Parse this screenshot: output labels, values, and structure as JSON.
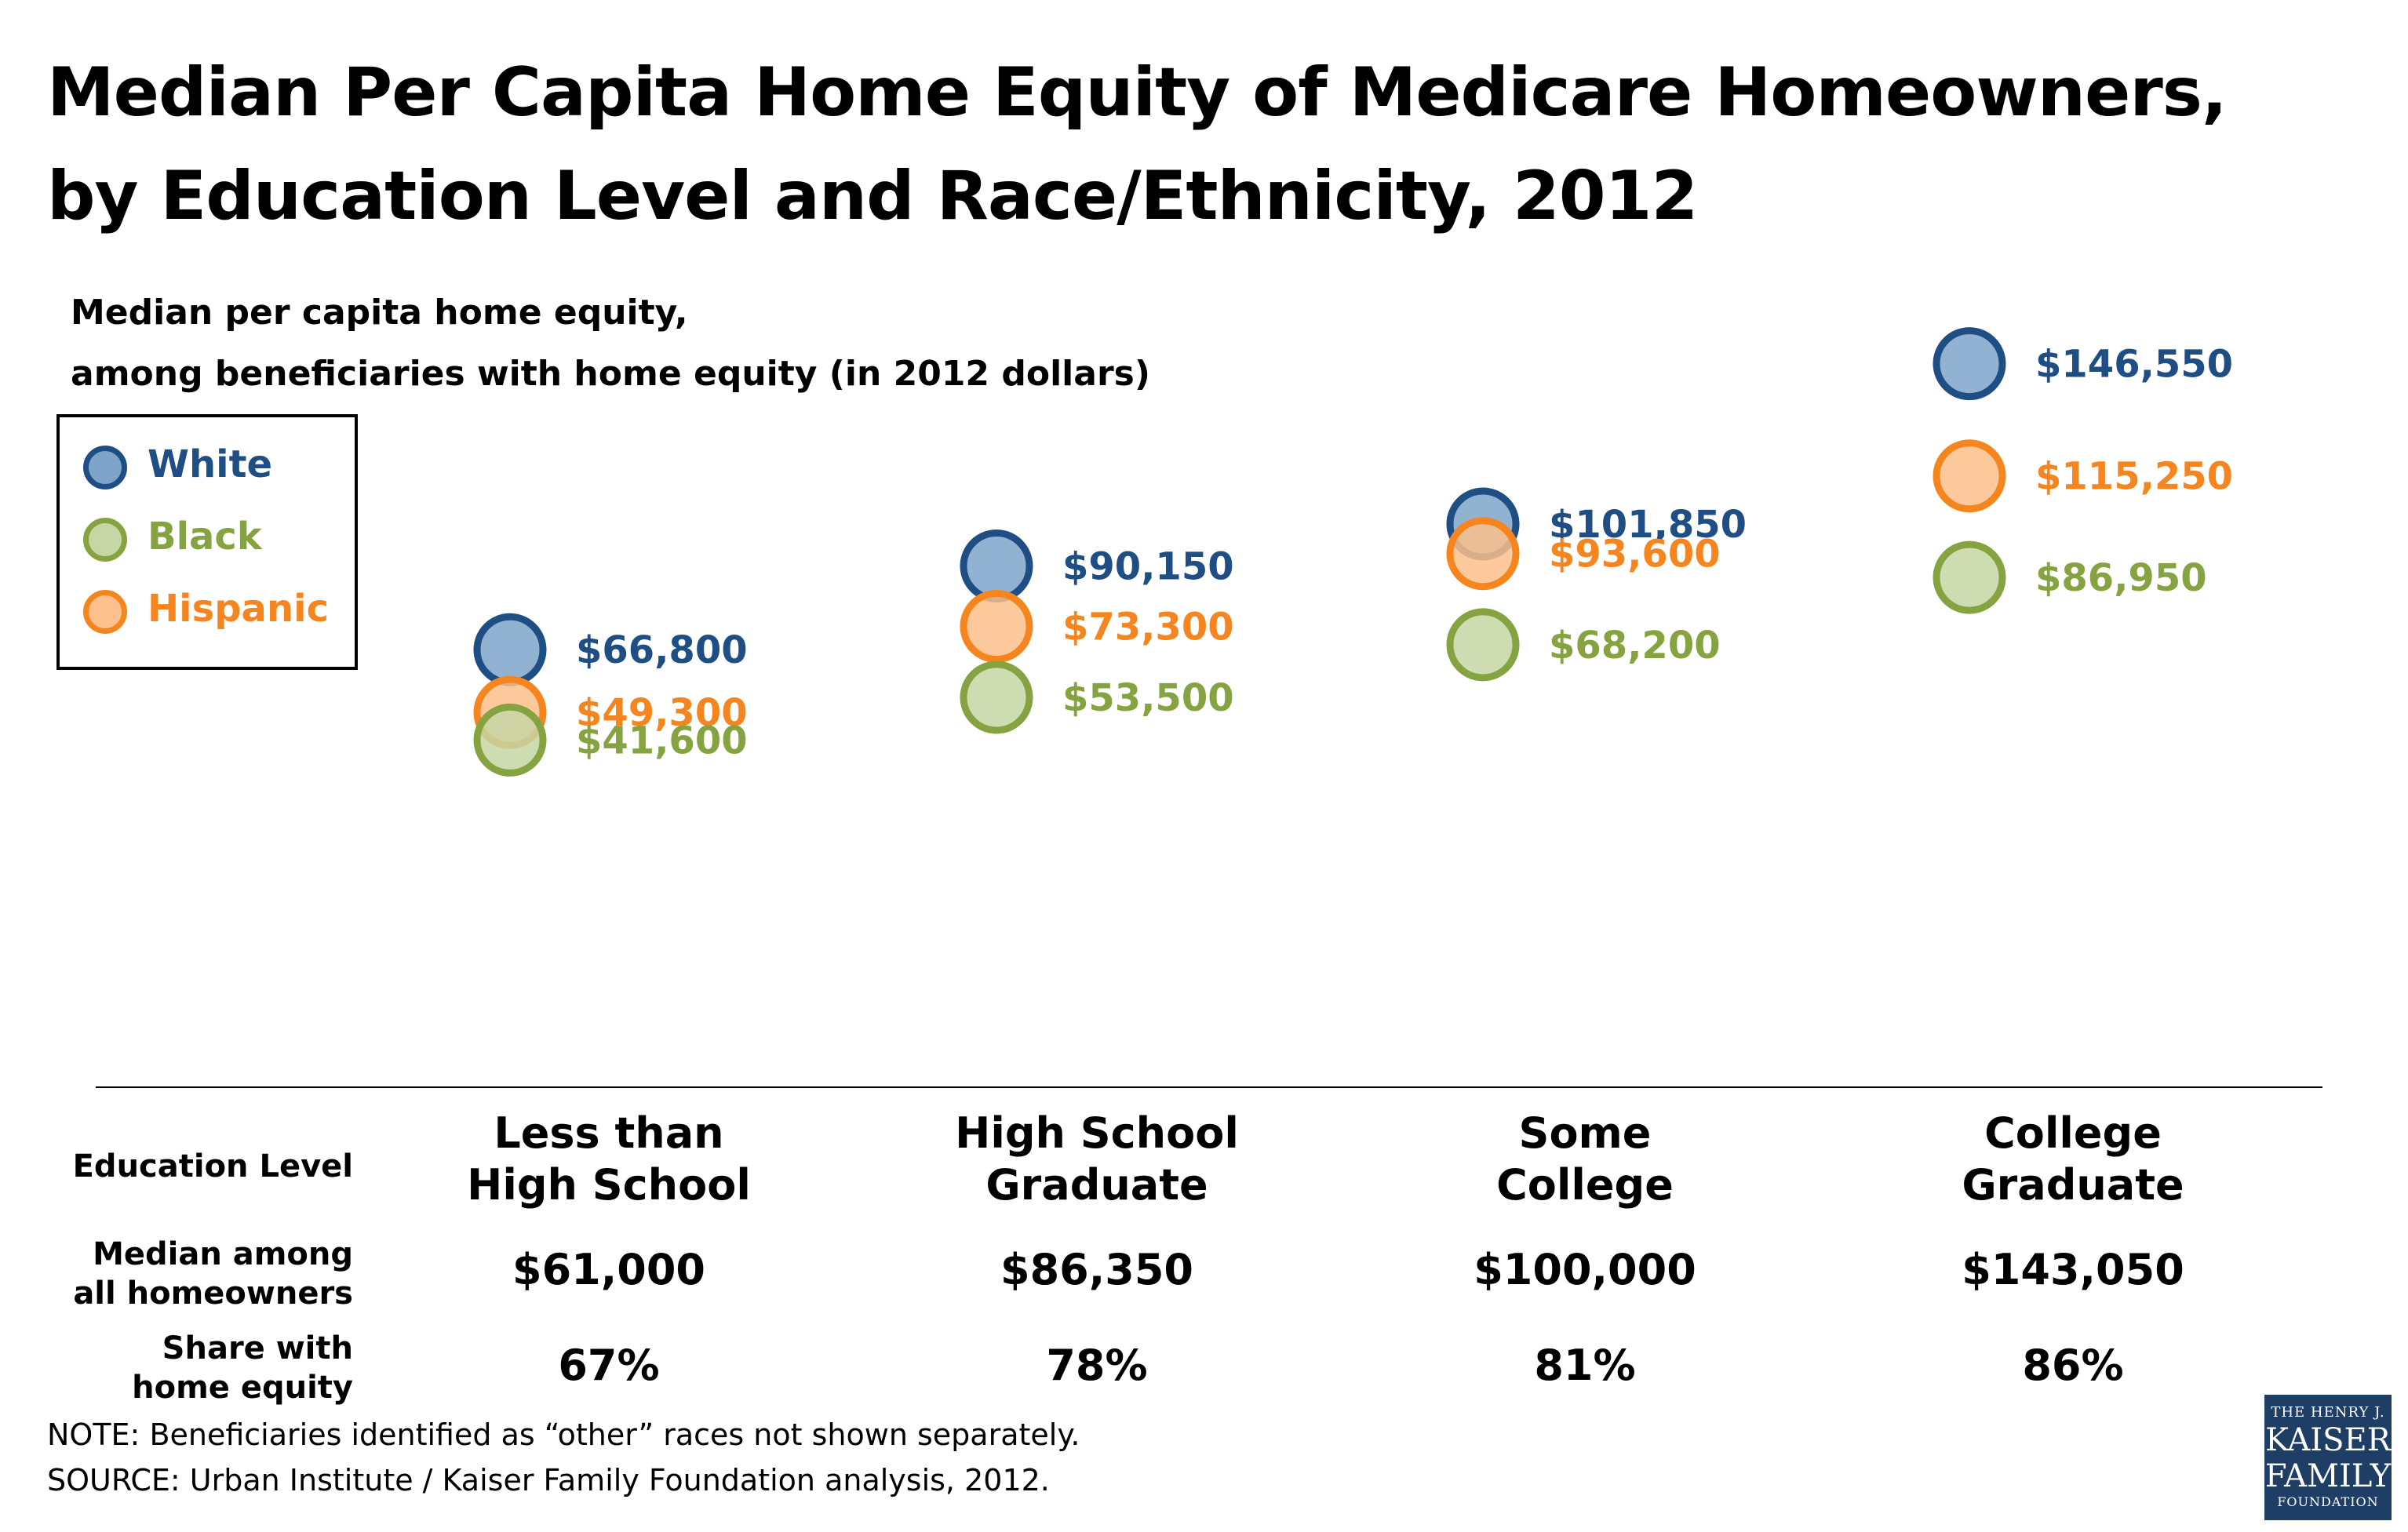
{
  "title_line1": "Median Per Capita Home Equity of Medicare Homeowners,",
  "title_line2": "by Education Level and Race/Ethnicity, 2012",
  "subtitle_line1": "Median per capita home equity,",
  "subtitle_line2": "among beneficiaries with home equity (in 2012 dollars)",
  "colors": {
    "white_stroke": "#1f4e85",
    "white_fill": "#7fa4c9",
    "black_stroke": "#86a342",
    "black_fill": "#c6d6a4",
    "hispanic_stroke": "#f5861f",
    "hispanic_fill": "#fcc08c",
    "white_text": "#1f4e85",
    "black_text": "#86a342",
    "hispanic_text": "#f5861f"
  },
  "chart_data": {
    "type": "scatter",
    "title": "Median Per Capita Home Equity of Medicare Homeowners, by Education Level and Race/Ethnicity, 2012",
    "ylabel": "Median per capita home equity, among beneficiaries with home equity (in 2012 dollars)",
    "categories": [
      "Less than High School",
      "High School Graduate",
      "Some College",
      "College Graduate"
    ],
    "legend_placement": "top-left",
    "grid": false,
    "series": [
      {
        "name": "White",
        "values": [
          66800,
          90150,
          101850,
          146550
        ],
        "labels": [
          "$66,800",
          "$90,150",
          "$101,850",
          "$146,550"
        ]
      },
      {
        "name": "Black",
        "values": [
          41600,
          53500,
          68200,
          86950
        ],
        "labels": [
          "$41,600",
          "$53,500",
          "$68,200",
          "$86,950"
        ]
      },
      {
        "name": "Hispanic",
        "values": [
          49300,
          73300,
          93600,
          115250
        ],
        "labels": [
          "$49,300",
          "$73,300",
          "$93,600",
          "$115,250"
        ]
      }
    ],
    "ylim": [
      30000,
      155000
    ]
  },
  "legend": [
    {
      "label": "White",
      "key": "white"
    },
    {
      "label": "Black",
      "key": "black"
    },
    {
      "label": "Hispanic",
      "key": "hispanic"
    }
  ],
  "table": {
    "row_labels": {
      "education": "Education Level",
      "median_line1": "Median among",
      "median_line2": "all homeowners",
      "share_line1": "Share with",
      "share_line2": "home equity"
    },
    "columns": [
      {
        "head1": "Less than",
        "head2": "High School",
        "median": "$61,000",
        "share": "67%"
      },
      {
        "head1": "High School",
        "head2": "Graduate",
        "median": "$86,350",
        "share": "78%"
      },
      {
        "head1": "Some",
        "head2": "College",
        "median": "$100,000",
        "share": "81%"
      },
      {
        "head1": "College",
        "head2": "Graduate",
        "median": "$143,050",
        "share": "86%"
      }
    ]
  },
  "note": "NOTE: Beneficiaries identified as “other” races not shown separately.",
  "source": "SOURCE: Urban Institute / Kaiser Family Foundation analysis, 2012.",
  "logo": {
    "line1": "THE HENRY J.",
    "line2": "KAISER",
    "line3": "FAMILY",
    "line4": "FOUNDATION"
  }
}
